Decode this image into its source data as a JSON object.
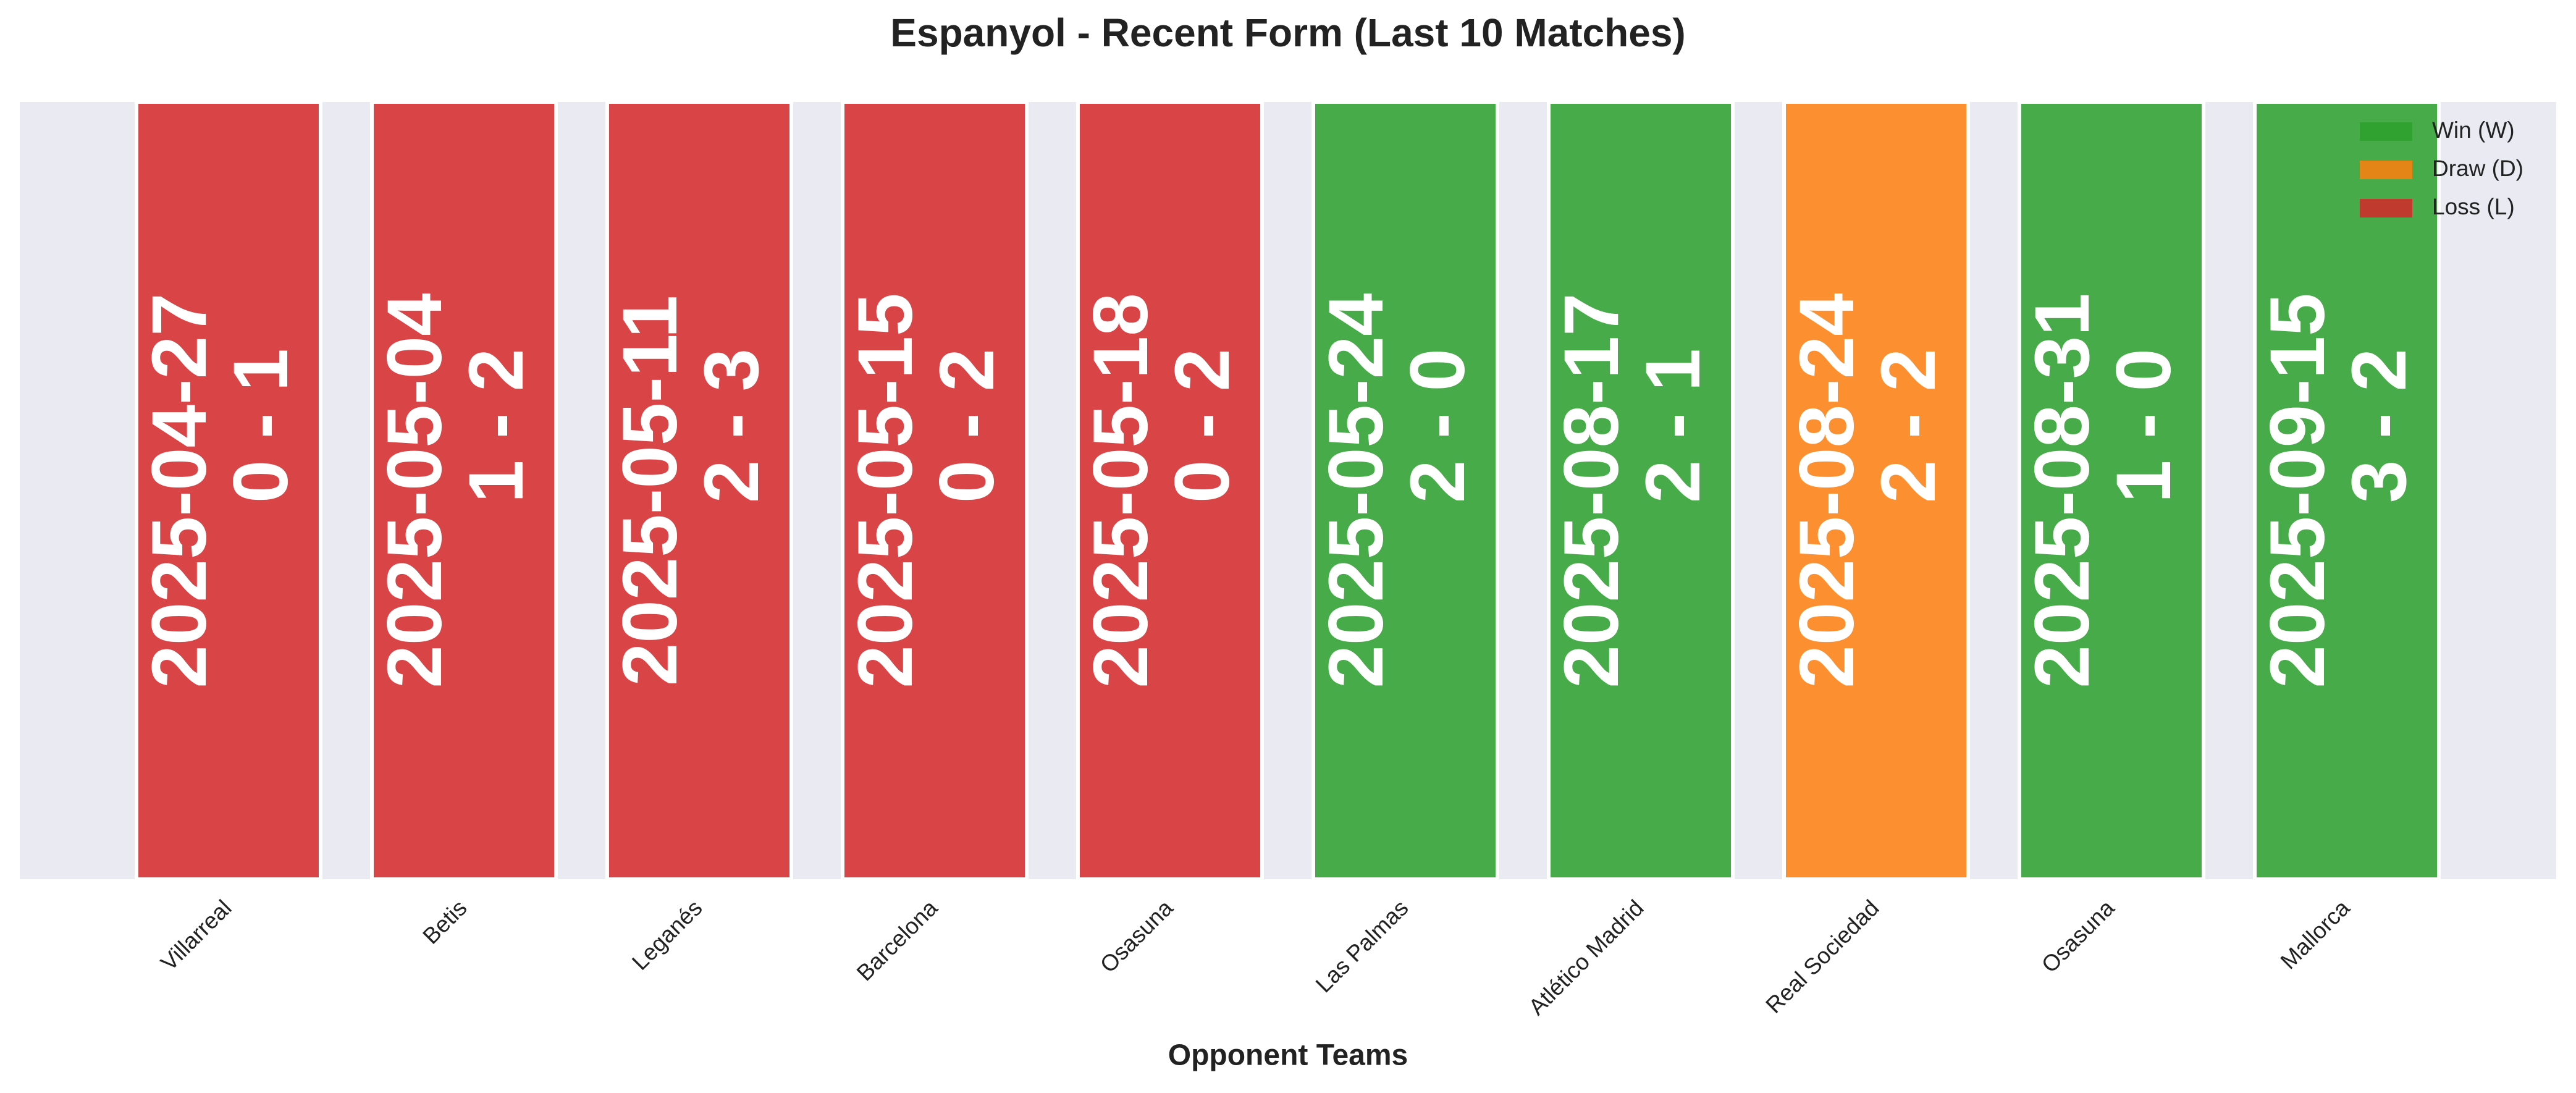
{
  "chart_data": {
    "type": "bar",
    "title": "Espanyol - Recent Form (Last 10 Matches)",
    "x_label": "Opponent Teams",
    "categories": [
      "Villarreal",
      "Betis",
      "Leganés",
      "Barcelona",
      "Osasuna",
      "Las Palmas",
      "Atlético Madrid",
      "Real Sociedad",
      "Osasuna",
      "Mallorca"
    ],
    "values": [
      1,
      1,
      1,
      1,
      1,
      1,
      1,
      1,
      1,
      1
    ],
    "dates": [
      "2025-04-27",
      "2025-05-04",
      "2025-05-11",
      "2025-05-15",
      "2025-05-18",
      "2025-05-24",
      "2025-08-17",
      "2025-08-24",
      "2025-08-31",
      "2025-09-15"
    ],
    "scores": [
      "0 - 1",
      "1 - 2",
      "2 - 3",
      "0 - 2",
      "0 - 2",
      "2 - 0",
      "2 - 1",
      "2 - 2",
      "1 - 0",
      "3 - 2"
    ],
    "colors": [
      "#d62728",
      "#d62728",
      "#d62728",
      "#d62728",
      "#d62728",
      "#2ca02c",
      "#2ca02c",
      "#ff7f0e",
      "#2ca02c",
      "#2ca02c"
    ],
    "ylim": [
      0,
      1
    ],
    "legend": [
      {
        "name": "Win (W)",
        "color": "#2ca02c"
      },
      {
        "name": "Draw (D)",
        "color": "#ff7f0e"
      },
      {
        "name": "Loss (L)",
        "color": "#d62728"
      }
    ],
    "legend_position": "upper right"
  }
}
